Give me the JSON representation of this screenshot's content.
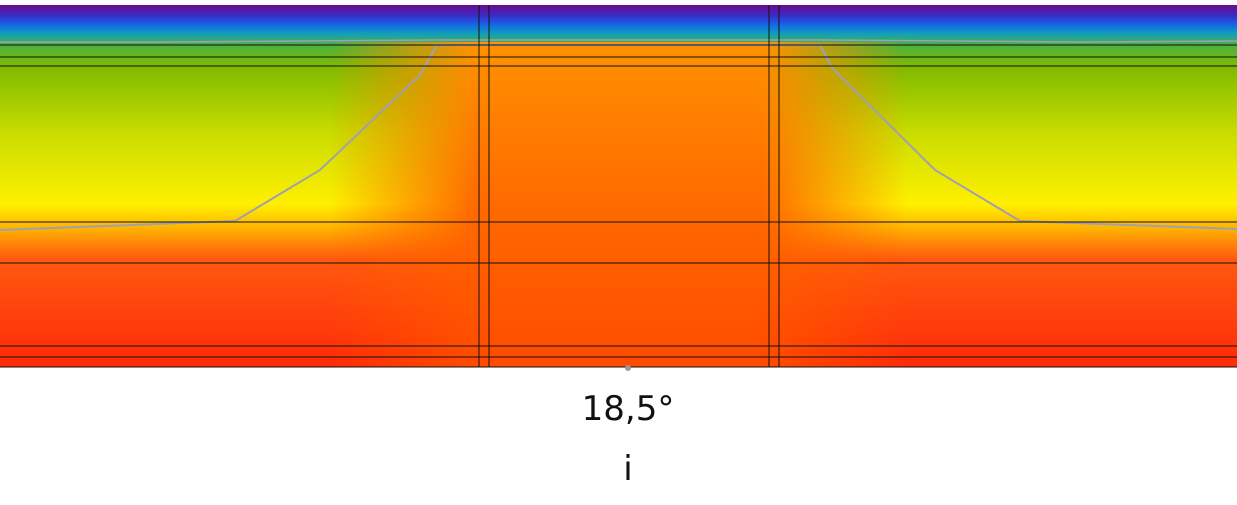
{
  "label": {
    "temperature": "18,5°",
    "side": "i"
  }
}
